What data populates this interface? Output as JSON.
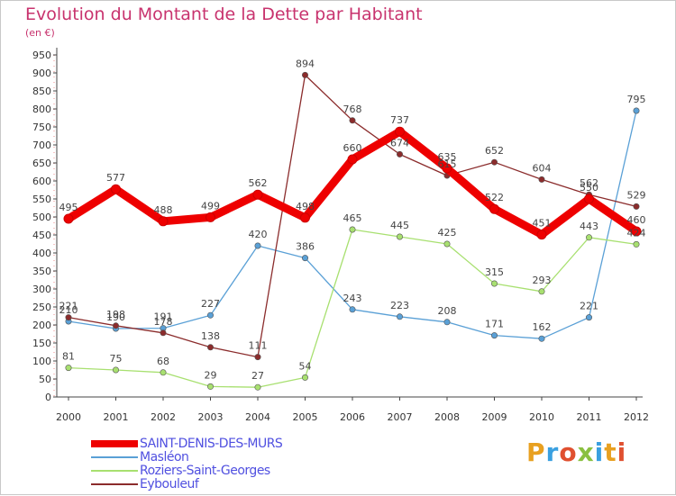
{
  "title": "Evolution du Montant de la Dette par Habitant",
  "subtitle": "(en €)",
  "brand": "Proxiti",
  "chart_data": {
    "type": "line",
    "x": [
      "2000",
      "2001",
      "2002",
      "2003",
      "2004",
      "2005",
      "2006",
      "2007",
      "2008",
      "2009",
      "2010",
      "2011",
      "2012"
    ],
    "ylim": [
      0,
      950
    ],
    "yticks": [
      0,
      50,
      100,
      150,
      200,
      250,
      300,
      350,
      400,
      450,
      500,
      550,
      600,
      650,
      700,
      750,
      800,
      850,
      900,
      950
    ],
    "grid": false,
    "legend": "bottom-left",
    "series": [
      {
        "name": "SAINT-DENIS-DES-MURS",
        "color": "#ee0000",
        "values": [
          495,
          577,
          488,
          499,
          562,
          498,
          660,
          737,
          635,
          522,
          451,
          550,
          460
        ]
      },
      {
        "name": "Masléon",
        "color": "#5aa0d6",
        "values": [
          210,
          190,
          191,
          227,
          420,
          386,
          243,
          223,
          208,
          171,
          162,
          221,
          795
        ]
      },
      {
        "name": "Roziers-Saint-Georges",
        "color": "#a8e070",
        "values": [
          81,
          75,
          68,
          29,
          27,
          54,
          465,
          445,
          425,
          315,
          293,
          443,
          424
        ]
      },
      {
        "name": "Eybouleuf",
        "color": "#8b2c2c",
        "values": [
          221,
          198,
          178,
          138,
          111,
          894,
          768,
          674,
          615,
          652,
          604,
          562,
          529
        ]
      }
    ]
  }
}
